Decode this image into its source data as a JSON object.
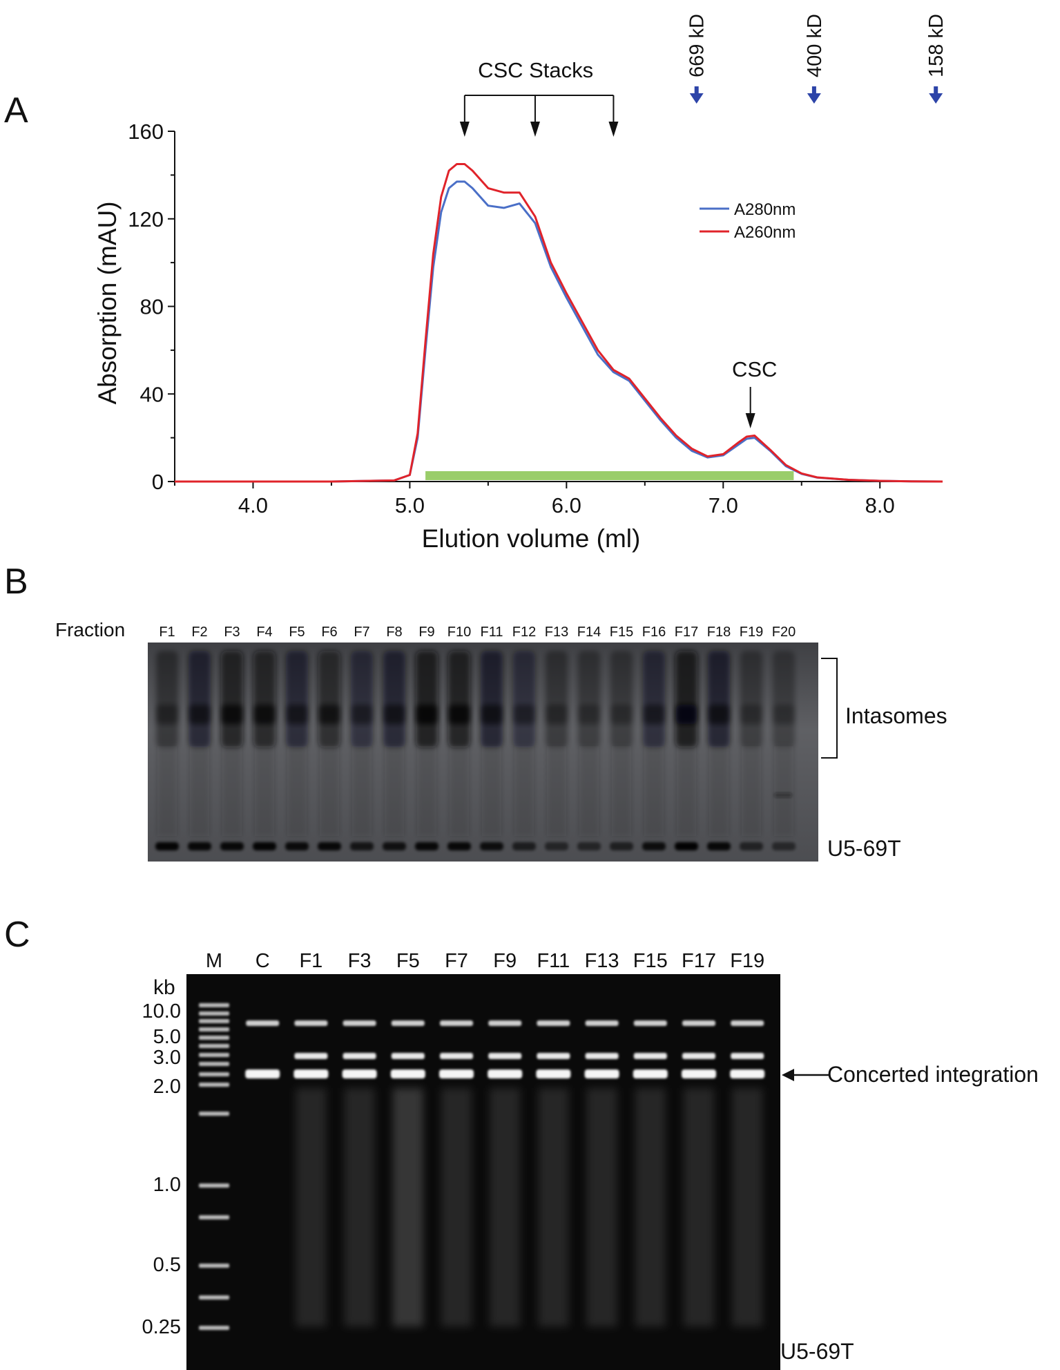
{
  "panels": {
    "a": "A",
    "b": "B",
    "c": "C"
  },
  "chart_data": {
    "type": "line",
    "xlabel": "Elution volume (ml)",
    "ylabel": "Absorption (mAU)",
    "xlim": [
      3.5,
      8.4
    ],
    "ylim": [
      0,
      160
    ],
    "x_ticks": [
      "4.0",
      "5.0",
      "6.0",
      "7.0",
      "8.0"
    ],
    "y_ticks": [
      "0",
      "40",
      "80",
      "120",
      "160"
    ],
    "grid": false,
    "legend_position": "top-right",
    "series": [
      {
        "name": "A280nm",
        "color": "#4a6fc7",
        "x": [
          3.5,
          4.0,
          4.5,
          4.9,
          5.0,
          5.05,
          5.1,
          5.15,
          5.2,
          5.25,
          5.3,
          5.35,
          5.4,
          5.5,
          5.6,
          5.7,
          5.8,
          5.9,
          6.0,
          6.1,
          6.2,
          6.3,
          6.35,
          6.4,
          6.5,
          6.6,
          6.7,
          6.8,
          6.9,
          7.0,
          7.1,
          7.15,
          7.2,
          7.3,
          7.4,
          7.5,
          7.6,
          7.8,
          8.0,
          8.2,
          8.4
        ],
        "y": [
          0,
          0,
          0,
          0.5,
          3,
          20,
          60,
          98,
          123,
          134,
          137,
          137,
          134,
          126,
          125,
          127,
          118,
          98,
          84,
          71,
          58,
          50,
          48,
          46,
          37,
          28,
          20,
          14,
          11,
          12,
          17,
          19.5,
          20,
          14,
          7,
          3.5,
          1.8,
          0.8,
          0.3,
          0.1,
          0
        ]
      },
      {
        "name": "A260nm",
        "color": "#e0232a",
        "x": [
          3.5,
          4.0,
          4.5,
          4.9,
          5.0,
          5.05,
          5.1,
          5.15,
          5.2,
          5.25,
          5.3,
          5.35,
          5.4,
          5.5,
          5.6,
          5.7,
          5.8,
          5.9,
          6.0,
          6.1,
          6.2,
          6.3,
          6.35,
          6.4,
          6.5,
          6.6,
          6.7,
          6.8,
          6.9,
          7.0,
          7.1,
          7.15,
          7.2,
          7.3,
          7.4,
          7.5,
          7.6,
          7.8,
          8.0,
          8.2,
          8.4
        ],
        "y": [
          0,
          0,
          0,
          0.5,
          3,
          22,
          64,
          104,
          130,
          142,
          145,
          145,
          142,
          134,
          132,
          132,
          121,
          100,
          86,
          73,
          60,
          51,
          49,
          47,
          38,
          29,
          21,
          15,
          11.5,
          12.5,
          18,
          20.5,
          21,
          14.5,
          7.5,
          3.7,
          1.9,
          0.8,
          0.3,
          0.1,
          0
        ]
      }
    ],
    "collected_fraction_bar": {
      "x_start": 5.1,
      "x_end": 7.45,
      "color": "#9acd6a"
    },
    "annotations": {
      "csc_stacks_label": "CSC Stacks",
      "csc_stacks_x": [
        5.35,
        5.8,
        6.3
      ],
      "csc_label": "CSC",
      "csc_x": 7.2,
      "markers": [
        {
          "label": "669 kD",
          "x": 6.83
        },
        {
          "label": "400 kD",
          "x": 7.58
        },
        {
          "label": "158 kD",
          "x": 8.37
        }
      ]
    }
  },
  "gel_b": {
    "fraction_label": "Fraction",
    "lanes": [
      "F1",
      "F2",
      "F3",
      "F4",
      "F5",
      "F6",
      "F7",
      "F8",
      "F9",
      "F10",
      "F11",
      "F12",
      "F13",
      "F14",
      "F15",
      "F16",
      "F17",
      "F18",
      "F19",
      "F20"
    ],
    "intasome_intensity": [
      0.25,
      0.5,
      0.75,
      0.7,
      0.45,
      0.6,
      0.35,
      0.5,
      0.85,
      0.8,
      0.55,
      0.3,
      0.2,
      0.15,
      0.15,
      0.4,
      0.9,
      0.55,
      0.15,
      0.1
    ],
    "target_intensity": [
      0.9,
      0.85,
      0.85,
      0.9,
      0.8,
      0.85,
      0.6,
      0.7,
      0.85,
      0.85,
      0.75,
      0.45,
      0.3,
      0.3,
      0.4,
      0.75,
      0.95,
      0.85,
      0.35,
      0.25
    ],
    "intasomes_label": "Intasomes",
    "target_label": "U5-69T"
  },
  "gel_c": {
    "lanes": [
      "M",
      "C",
      "F1",
      "F3",
      "F5",
      "F7",
      "F9",
      "F11",
      "F13",
      "F15",
      "F17",
      "F19"
    ],
    "unit_label": "kb",
    "size_labels": [
      "10.0",
      "5.0",
      "3.0",
      "2.0",
      "1.0",
      "0.5",
      "0.25"
    ],
    "concerted_label": "Concerted integration",
    "target_label": "U5-69T"
  }
}
